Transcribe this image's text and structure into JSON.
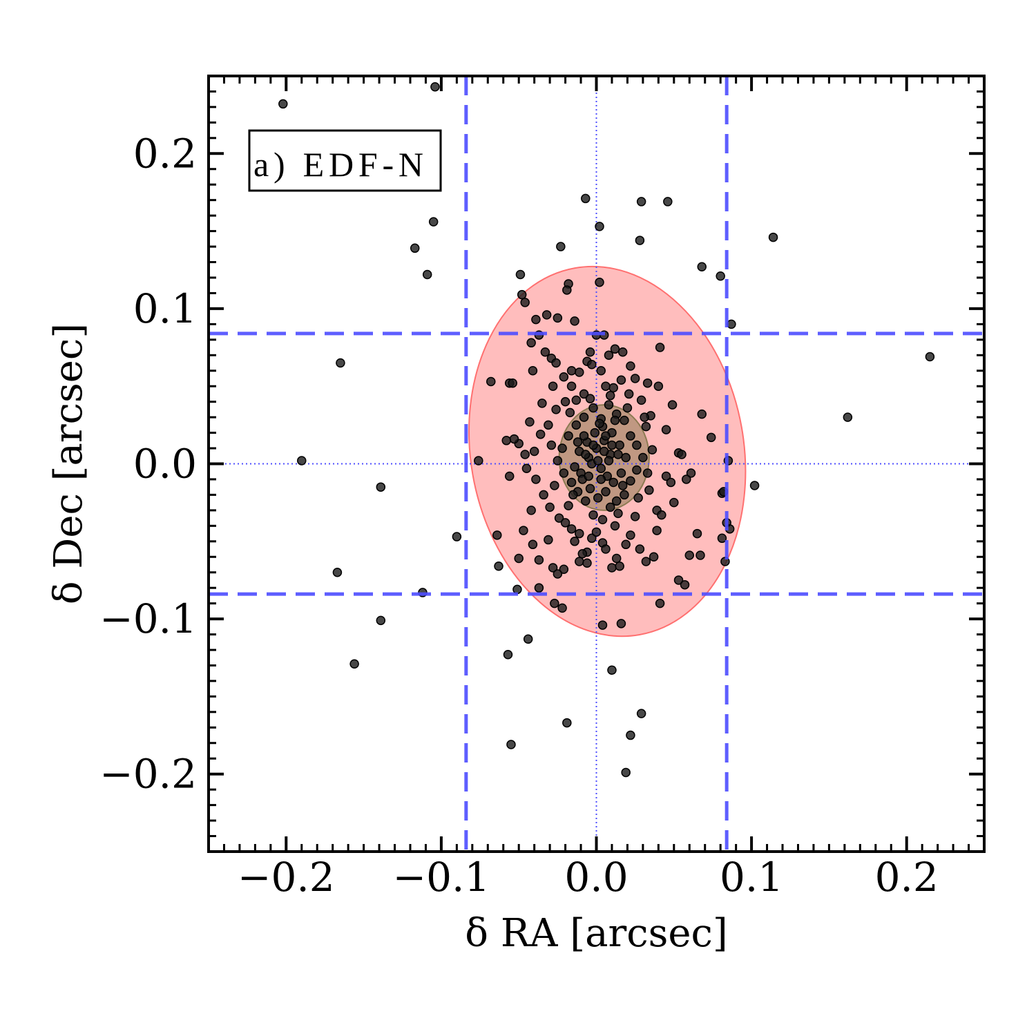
{
  "chart_data": {
    "type": "scatter",
    "xlabel": "δ RA [arcsec]",
    "ylabel": "δ Dec [arcsec]",
    "xlim": [
      -0.25,
      0.25
    ],
    "ylim": [
      -0.25,
      0.25
    ],
    "xticks": [
      -0.2,
      -0.1,
      0.0,
      0.1,
      0.2
    ],
    "yticks": [
      -0.2,
      -0.1,
      0.0,
      0.1,
      0.2
    ],
    "xtick_labels": [
      "−0.2",
      "−0.1",
      "0.0",
      "0.1",
      "0.2"
    ],
    "ytick_labels": [
      "−0.2",
      "−0.1",
      "0.0",
      "0.1",
      "0.2"
    ],
    "annotation": "a) EDF-N",
    "annotation_position": "top-left",
    "grid": false,
    "colors": {
      "points": "#1a1a1a",
      "threshold_lines": "#4d4dff",
      "outer_ellipse": "#ff9999",
      "inner_ellipse": "#8c7a52"
    },
    "threshold_lines": {
      "x": [
        -0.084,
        0.084
      ],
      "y": [
        -0.084,
        0.084
      ],
      "style": "dashed"
    },
    "zero_lines": {
      "x": 0,
      "y": 0,
      "style": "dotted"
    },
    "ellipses": [
      {
        "name": "outer",
        "cx": 0.007,
        "cy": 0.008,
        "rx": 0.088,
        "ry": 0.12,
        "angle": 10
      },
      {
        "name": "inner",
        "cx": 0.005,
        "cy": 0.004,
        "rx": 0.029,
        "ry": 0.034,
        "angle": 0
      }
    ],
    "points": [
      [
        -0.202,
        0.232
      ],
      [
        -0.104,
        0.243
      ],
      [
        -0.105,
        0.156
      ],
      [
        -0.117,
        0.139
      ],
      [
        -0.109,
        0.122
      ],
      [
        -0.007,
        0.171
      ],
      [
        0.029,
        0.169
      ],
      [
        0.046,
        0.169
      ],
      [
        0.002,
        0.153
      ],
      [
        -0.023,
        0.14
      ],
      [
        0.028,
        0.144
      ],
      [
        0.114,
        0.146
      ],
      [
        0.068,
        0.127
      ],
      [
        0.08,
        0.121
      ],
      [
        -0.049,
        0.122
      ],
      [
        -0.018,
        0.116
      ],
      [
        0.002,
        0.117
      ],
      [
        -0.019,
        0.112
      ],
      [
        -0.048,
        0.109
      ],
      [
        -0.046,
        0.104
      ],
      [
        -0.032,
        0.096
      ],
      [
        -0.025,
        0.094
      ],
      [
        -0.014,
        0.092
      ],
      [
        -0.039,
        0.093
      ],
      [
        0.087,
        0.09
      ],
      [
        -0.165,
        0.065
      ],
      [
        0.215,
        0.069
      ],
      [
        0.162,
        0.03
      ],
      [
        -0.19,
        0.002
      ],
      [
        -0.139,
        -0.015
      ],
      [
        0.102,
        -0.014
      ],
      [
        -0.09,
        -0.047
      ],
      [
        -0.167,
        -0.07
      ],
      [
        -0.112,
        -0.083
      ],
      [
        -0.139,
        -0.101
      ],
      [
        -0.156,
        -0.129
      ],
      [
        -0.057,
        -0.123
      ],
      [
        -0.044,
        -0.113
      ],
      [
        0.01,
        -0.133
      ],
      [
        -0.019,
        -0.167
      ],
      [
        0.029,
        -0.161
      ],
      [
        -0.055,
        -0.181
      ],
      [
        0.022,
        -0.175
      ],
      [
        0.019,
        -0.199
      ],
      [
        0.004,
        -0.104
      ],
      [
        0.016,
        -0.103
      ],
      [
        0.041,
        -0.09
      ],
      [
        -0.027,
        -0.09
      ],
      [
        -0.022,
        -0.093
      ],
      [
        0.053,
        -0.075
      ],
      [
        0.057,
        -0.078
      ],
      [
        0.083,
        -0.063
      ],
      [
        0.084,
        -0.038
      ],
      [
        0.086,
        -0.042
      ],
      [
        0.081,
        -0.048
      ],
      [
        0.081,
        -0.019
      ],
      [
        0.082,
        -0.018
      ],
      [
        0.085,
        0.002
      ],
      [
        0.068,
        0.032
      ],
      [
        0.074,
        0.017
      ],
      [
        -0.076,
        0.002
      ],
      [
        -0.064,
        -0.046
      ],
      [
        -0.063,
        -0.066
      ],
      [
        -0.05,
        -0.061
      ],
      [
        -0.068,
        0.053
      ],
      [
        -0.056,
        0.052
      ],
      [
        -0.054,
        0.052
      ],
      [
        -0.042,
        0.078
      ],
      [
        -0.037,
        0.083
      ],
      [
        -0.033,
        0.072
      ],
      [
        -0.041,
        0.06
      ],
      [
        -0.029,
        0.068
      ],
      [
        -0.026,
        0.065
      ],
      [
        -0.021,
        0.056
      ],
      [
        -0.016,
        0.06
      ],
      [
        -0.011,
        0.059
      ],
      [
        -0.006,
        0.066
      ],
      [
        0.0,
        0.083
      ],
      [
        0.005,
        0.083
      ],
      [
        0.008,
        0.07
      ],
      [
        0.012,
        0.074
      ],
      [
        0.017,
        0.072
      ],
      [
        0.022,
        0.063
      ],
      [
        0.033,
        0.052
      ],
      [
        0.041,
        0.075
      ],
      [
        0.049,
        0.038
      ],
      [
        0.045,
        0.022
      ],
      [
        0.053,
        0.007
      ],
      [
        0.061,
        -0.006
      ],
      [
        0.058,
        -0.01
      ],
      [
        0.05,
        -0.025
      ],
      [
        0.06,
        -0.059
      ],
      [
        0.065,
        -0.045
      ],
      [
        0.067,
        -0.059
      ],
      [
        0.037,
        -0.06
      ],
      [
        0.032,
        -0.063
      ],
      [
        0.028,
        -0.055
      ],
      [
        0.022,
        -0.046
      ],
      [
        0.013,
        -0.061
      ],
      [
        0.01,
        -0.067
      ],
      [
        0.015,
        -0.066
      ],
      [
        0.004,
        -0.051
      ],
      [
        -0.003,
        -0.048
      ],
      [
        -0.006,
        -0.057
      ],
      [
        -0.011,
        -0.063
      ],
      [
        -0.016,
        -0.042
      ],
      [
        -0.021,
        -0.068
      ],
      [
        -0.028,
        -0.067
      ],
      [
        -0.037,
        -0.062
      ],
      [
        -0.041,
        -0.052
      ],
      [
        -0.047,
        -0.043
      ],
      [
        -0.051,
        -0.081
      ],
      [
        -0.037,
        -0.08
      ],
      [
        -0.025,
        -0.071
      ],
      [
        -0.009,
        -0.058
      ],
      [
        -0.006,
        -0.064
      ],
      [
        0.027,
        -0.022
      ],
      [
        0.034,
        -0.017
      ],
      [
        0.039,
        -0.03
      ],
      [
        0.042,
        -0.033
      ],
      [
        0.045,
        -0.008
      ],
      [
        0.048,
        -0.012
      ],
      [
        0.035,
        0.031
      ],
      [
        0.032,
        0.024
      ],
      [
        0.029,
        0.041
      ],
      [
        0.021,
        0.045
      ],
      [
        0.016,
        0.054
      ],
      [
        0.011,
        0.049
      ],
      [
        0.006,
        0.05
      ],
      [
        0.003,
        0.06
      ],
      [
        -0.003,
        0.064
      ],
      [
        -0.008,
        0.045
      ],
      [
        -0.013,
        0.041
      ],
      [
        -0.02,
        0.04
      ],
      [
        -0.026,
        0.035
      ],
      [
        -0.031,
        0.025
      ],
      [
        -0.036,
        0.019
      ],
      [
        -0.04,
        0.008
      ],
      [
        -0.046,
        0.006
      ],
      [
        -0.05,
        0.013
      ],
      [
        -0.053,
        0.016
      ],
      [
        -0.045,
        -0.003
      ],
      [
        -0.039,
        -0.01
      ],
      [
        -0.034,
        -0.02
      ],
      [
        -0.03,
        -0.028
      ],
      [
        -0.024,
        -0.035
      ],
      [
        -0.018,
        -0.027
      ],
      [
        -0.012,
        -0.018
      ],
      [
        -0.007,
        -0.024
      ],
      [
        -0.002,
        -0.033
      ],
      [
        0.004,
        -0.036
      ],
      [
        0.009,
        -0.028
      ],
      [
        0.014,
        -0.032
      ],
      [
        0.018,
        -0.02
      ],
      [
        0.022,
        -0.011
      ],
      [
        0.026,
        -0.004
      ],
      [
        0.03,
        0.004
      ],
      [
        0.026,
        0.012
      ],
      [
        0.022,
        0.018
      ],
      [
        0.018,
        0.028
      ],
      [
        0.013,
        0.032
      ],
      [
        0.008,
        0.038
      ],
      [
        0.003,
        0.029
      ],
      [
        -0.002,
        0.036
      ],
      [
        -0.008,
        0.03
      ],
      [
        -0.013,
        0.025
      ],
      [
        -0.018,
        0.018
      ],
      [
        -0.022,
        0.01
      ],
      [
        -0.025,
        0.002
      ],
      [
        -0.021,
        -0.006
      ],
      [
        -0.016,
        -0.012
      ],
      [
        -0.01,
        -0.006
      ],
      [
        -0.005,
        0.004
      ],
      [
        0.0,
        0.01
      ],
      [
        0.005,
        0.015
      ],
      [
        0.01,
        0.02
      ],
      [
        0.015,
        0.012
      ],
      [
        0.019,
        0.004
      ],
      [
        0.016,
        -0.006
      ],
      [
        0.011,
        -0.012
      ],
      [
        0.006,
        -0.018
      ],
      [
        0.001,
        -0.022
      ],
      [
        -0.004,
        -0.016
      ],
      [
        -0.009,
        -0.01
      ],
      [
        -0.014,
        -0.002
      ],
      [
        -0.011,
        0.008
      ],
      [
        -0.006,
        0.014
      ],
      [
        -0.001,
        0.02
      ],
      [
        0.004,
        0.024
      ],
      [
        0.009,
        0.006
      ],
      [
        0.003,
        -0.003
      ],
      [
        -0.003,
        0.0
      ],
      [
        0.007,
        -0.008
      ],
      [
        -0.008,
        0.018
      ],
      [
        0.012,
        0.028
      ],
      [
        0.02,
        0.036
      ],
      [
        -0.004,
        0.042
      ],
      [
        -0.017,
        0.033
      ],
      [
        -0.029,
        0.012
      ],
      [
        -0.027,
        -0.014
      ],
      [
        -0.02,
        -0.038
      ],
      [
        -0.011,
        -0.045
      ],
      [
        0.0,
        -0.044
      ],
      [
        0.012,
        -0.04
      ],
      [
        0.025,
        -0.034
      ],
      [
        0.033,
        -0.006
      ],
      [
        0.036,
        0.009
      ],
      [
        0.031,
        0.03
      ],
      [
        0.009,
        0.044
      ],
      [
        -0.016,
        0.05
      ],
      [
        -0.035,
        0.039
      ],
      [
        -0.043,
        0.027
      ],
      [
        -0.058,
        0.015
      ],
      [
        -0.056,
        -0.008
      ],
      [
        -0.042,
        -0.03
      ],
      [
        -0.031,
        -0.049
      ],
      [
        -0.014,
        -0.05
      ],
      [
        0.006,
        -0.055
      ],
      [
        0.019,
        -0.052
      ],
      [
        0.039,
        -0.043
      ],
      [
        0.055,
        0.006
      ],
      [
        0.04,
        0.05
      ],
      [
        0.025,
        0.055
      ],
      [
        -0.004,
        0.072
      ],
      [
        -0.028,
        0.05
      ],
      [
        0.001,
        0.002
      ],
      [
        0.005,
        0.008
      ],
      [
        -0.002,
        0.012
      ],
      [
        0.008,
        0.002
      ],
      [
        0.003,
        -0.01
      ],
      [
        -0.005,
        -0.008
      ],
      [
        0.01,
        0.012
      ],
      [
        0.014,
        0.006
      ],
      [
        -0.007,
        0.006
      ],
      [
        0.006,
        0.018
      ],
      [
        0.017,
        -0.014
      ],
      [
        -0.012,
        0.014
      ],
      [
        0.002,
        0.026
      ],
      [
        0.013,
        -0.024
      ],
      [
        -0.015,
        -0.02
      ]
    ]
  }
}
